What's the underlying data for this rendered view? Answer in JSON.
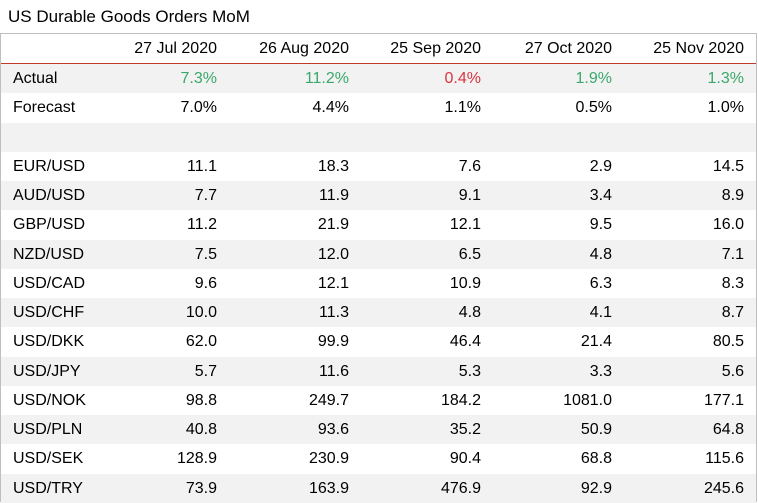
{
  "title": "US Durable Goods Orders MoM",
  "chart_data": {
    "type": "table",
    "title": "US Durable Goods Orders MoM",
    "columns": [
      "27 Jul 2020",
      "26 Aug 2020",
      "25 Sep 2020",
      "27 Oct 2020",
      "25 Nov 2020"
    ],
    "rows": [
      {
        "label": "Actual",
        "values": [
          "7.3%",
          "11.2%",
          "0.4%",
          "1.9%",
          "1.3%"
        ],
        "colors": [
          "#3aa86b",
          "#3aa86b",
          "#d9333f",
          "#3aa86b",
          "#3aa86b"
        ]
      },
      {
        "label": "Forecast",
        "values": [
          "7.0%",
          "4.4%",
          "1.1%",
          "0.5%",
          "1.0%"
        ]
      },
      {
        "label": "",
        "values": [
          "",
          "",
          "",
          "",
          ""
        ]
      },
      {
        "label": "EUR/USD",
        "values": [
          "11.1",
          "18.3",
          "7.6",
          "2.9",
          "14.5"
        ]
      },
      {
        "label": "AUD/USD",
        "values": [
          "7.7",
          "11.9",
          "9.1",
          "3.4",
          "8.9"
        ]
      },
      {
        "label": "GBP/USD",
        "values": [
          "11.2",
          "21.9",
          "12.1",
          "9.5",
          "16.0"
        ]
      },
      {
        "label": "NZD/USD",
        "values": [
          "7.5",
          "12.0",
          "6.5",
          "4.8",
          "7.1"
        ]
      },
      {
        "label": "USD/CAD",
        "values": [
          "9.6",
          "12.1",
          "10.9",
          "6.3",
          "8.3"
        ]
      },
      {
        "label": "USD/CHF",
        "values": [
          "10.0",
          "11.3",
          "4.8",
          "4.1",
          "8.7"
        ]
      },
      {
        "label": "USD/DKK",
        "values": [
          "62.0",
          "99.9",
          "46.4",
          "21.4",
          "80.5"
        ]
      },
      {
        "label": "USD/JPY",
        "values": [
          "5.7",
          "11.6",
          "5.3",
          "3.3",
          "5.6"
        ]
      },
      {
        "label": "USD/NOK",
        "values": [
          "98.8",
          "249.7",
          "184.2",
          "1081.0",
          "177.1"
        ]
      },
      {
        "label": "USD/PLN",
        "values": [
          "40.8",
          "93.6",
          "35.2",
          "50.9",
          "64.8"
        ]
      },
      {
        "label": "USD/SEK",
        "values": [
          "128.9",
          "230.9",
          "90.4",
          "68.8",
          "115.6"
        ]
      },
      {
        "label": "USD/TRY",
        "values": [
          "73.9",
          "163.9",
          "476.9",
          "92.9",
          "245.6"
        ]
      }
    ]
  }
}
